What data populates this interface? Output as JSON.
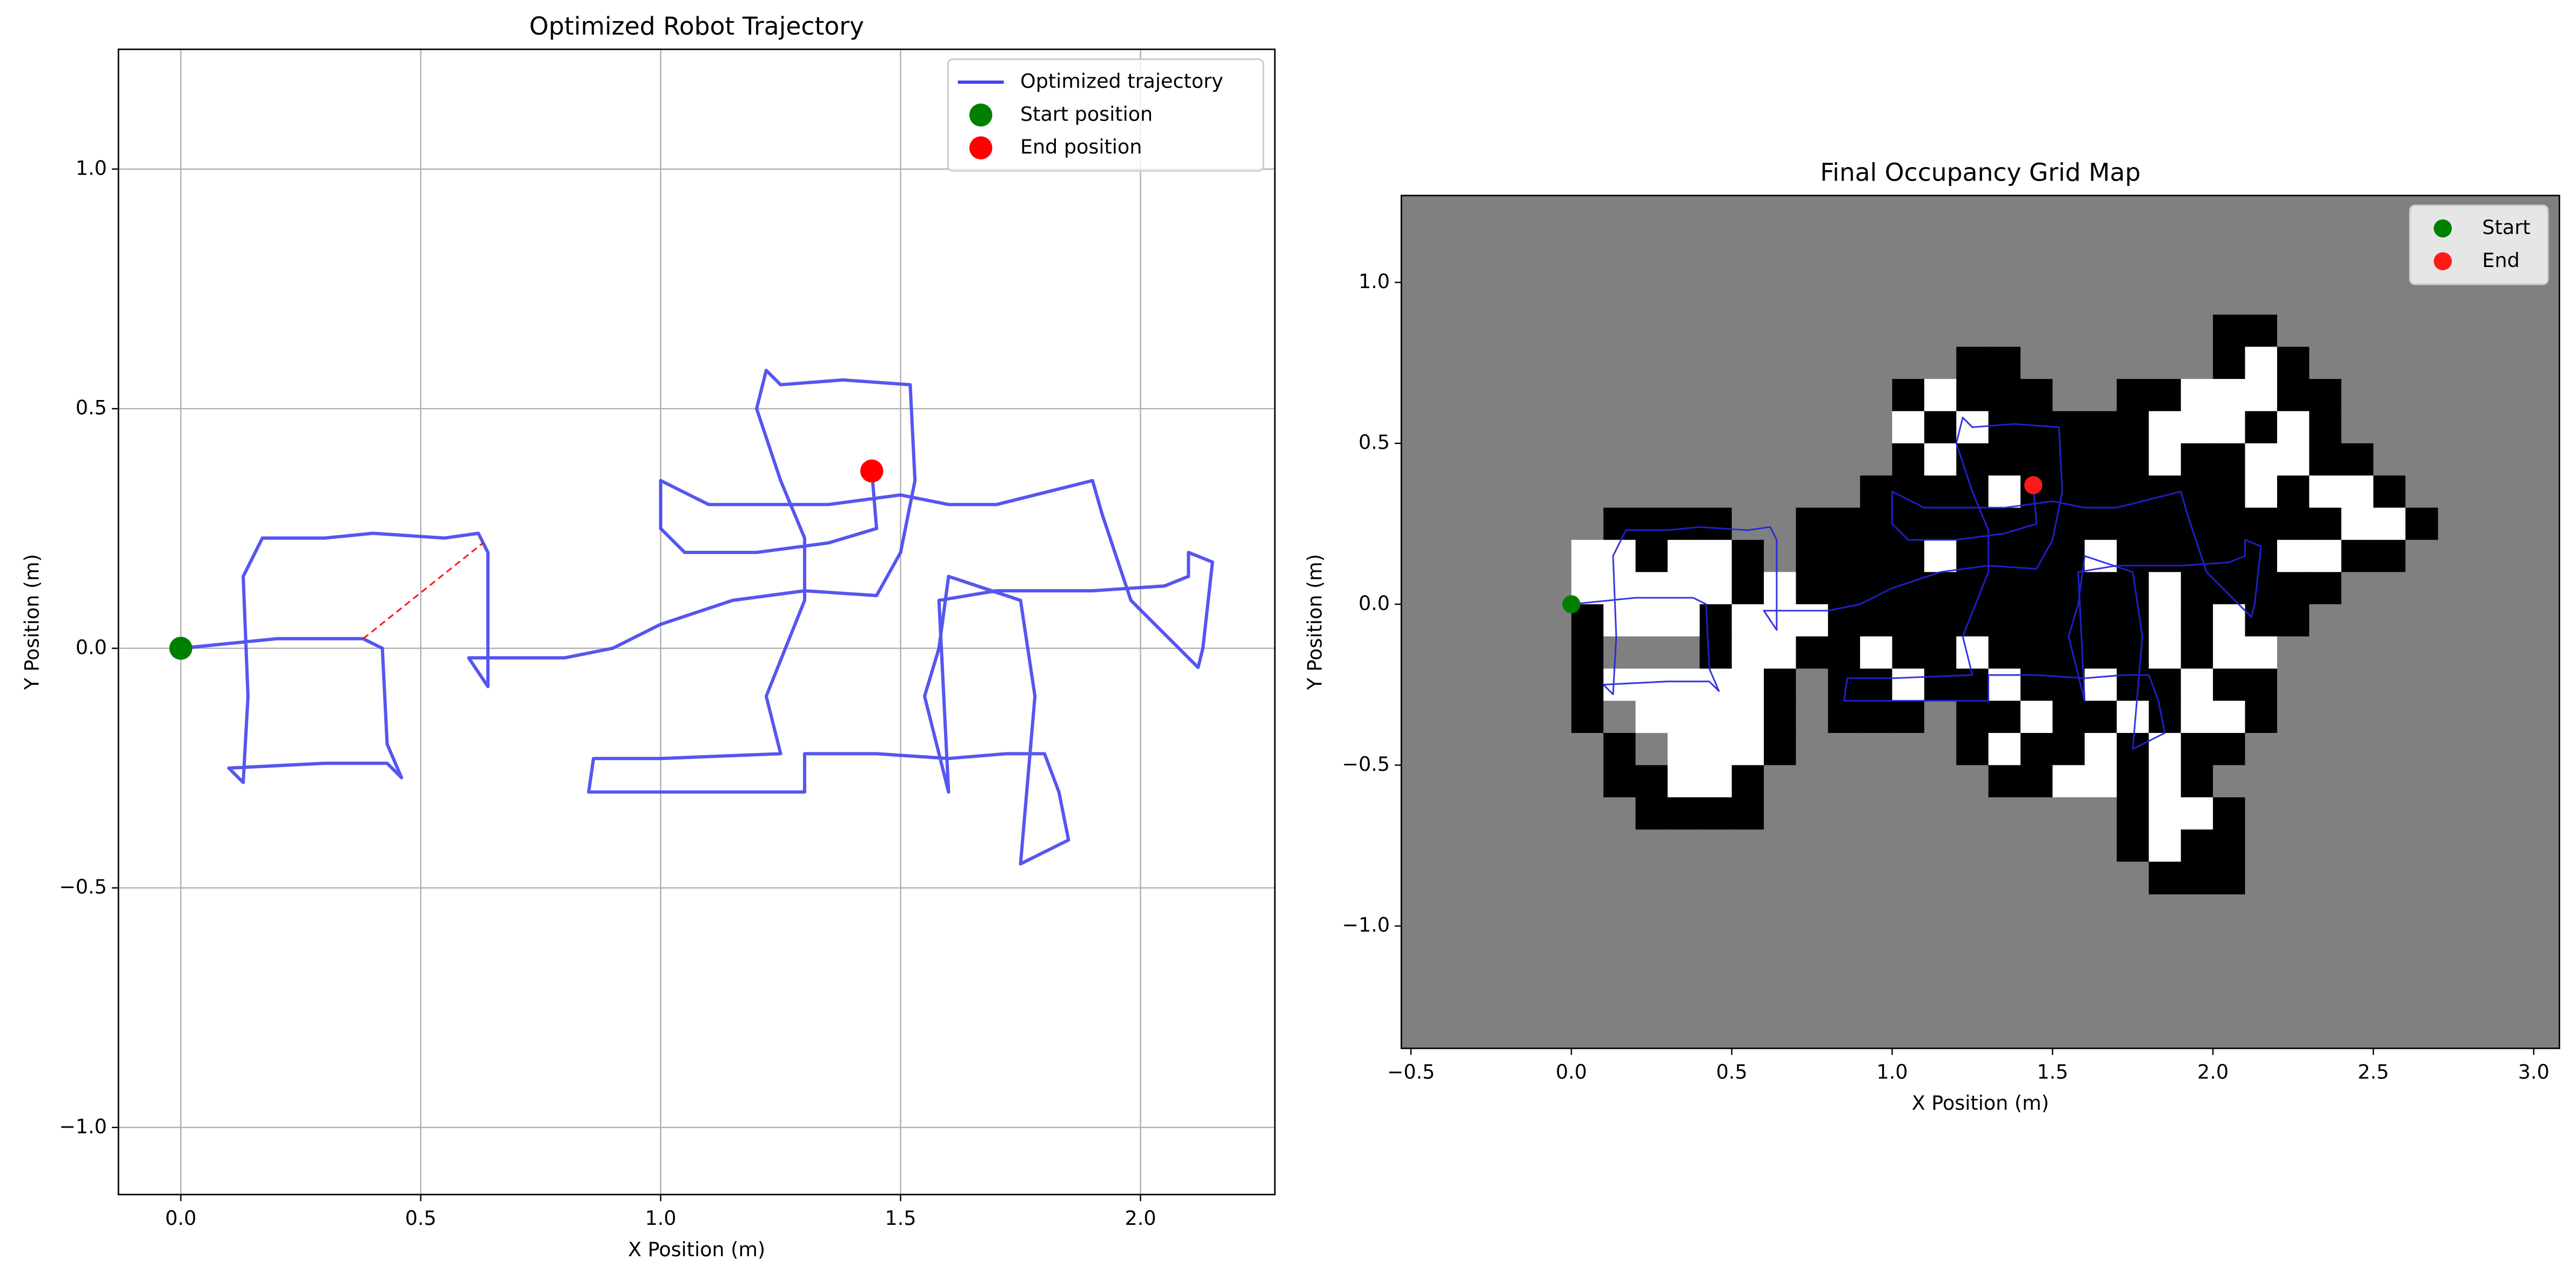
{
  "chart_data": [
    {
      "type": "line",
      "title": "Optimized Robot Trajectory",
      "xlabel": "X Position (m)",
      "ylabel": "Y Position (m)",
      "xlim": [
        -0.13,
        2.28
      ],
      "ylim": [
        -1.14,
        1.25
      ],
      "grid": true,
      "legend": "upper right",
      "xticks": [
        {
          "value": 0,
          "label": "0.0"
        },
        {
          "value": 0.5,
          "label": "0.5"
        },
        {
          "value": 1,
          "label": "1.0"
        },
        {
          "value": 1.5,
          "label": "1.5"
        },
        {
          "value": 2,
          "label": "2.0"
        }
      ],
      "yticks": [
        {
          "value": -1,
          "label": "−1.0"
        },
        {
          "value": -0.5,
          "label": "−0.5"
        },
        {
          "value": 0,
          "label": "0.0"
        },
        {
          "value": 0.5,
          "label": "0.5"
        },
        {
          "value": 1,
          "label": "1.0"
        }
      ],
      "series": [
        {
          "name": "Optimized trajectory",
          "color": "#4444ee",
          "linewidth": 2,
          "x": [
            0,
            0,
            0.2,
            0.38,
            0.42,
            0.43,
            0.46,
            0.43,
            0.3,
            0.1,
            0.13,
            0.14,
            0.13,
            0.17,
            0.3,
            0.4,
            0.55,
            0.62,
            0.64,
            0.64,
            0.64,
            0.6,
            0.8,
            0.9,
            1.0,
            1.15,
            1.3,
            1.45,
            1.5,
            1.53,
            1.52,
            1.38,
            1.25,
            1.22,
            1.2,
            1.25,
            1.3,
            1.3,
            1.22,
            1.25,
            1.0,
            0.86,
            0.85,
            0.9,
            1.1,
            1.3,
            1.3,
            1.45,
            1.6,
            1.72,
            1.8,
            1.83,
            1.85,
            1.75,
            1.78,
            1.75,
            1.6,
            1.58,
            1.55,
            1.6,
            1.58,
            1.7,
            1.9,
            2.05,
            2.1,
            2.1,
            2.15,
            2.13,
            2.12,
            1.98,
            1.92,
            1.9,
            1.7,
            1.6,
            1.5,
            1.35,
            1.1,
            1.0,
            1.0,
            1.05,
            1.2,
            1.35,
            1.45,
            1.44
          ],
          "y": [
            0.02,
            0,
            0.02,
            0.02,
            0,
            -0.2,
            -0.27,
            -0.24,
            -0.24,
            -0.25,
            -0.28,
            -0.1,
            0.15,
            0.23,
            0.23,
            0.24,
            0.23,
            0.24,
            0.2,
            0,
            -0.08,
            -0.02,
            -0.02,
            0,
            0.05,
            0.1,
            0.12,
            0.11,
            0.2,
            0.35,
            0.55,
            0.56,
            0.55,
            0.58,
            0.5,
            0.35,
            0.23,
            0.1,
            -0.1,
            -0.22,
            -0.23,
            -0.23,
            -0.3,
            -0.3,
            -0.3,
            -0.3,
            -0.22,
            -0.22,
            -0.23,
            -0.22,
            -0.22,
            -0.3,
            -0.4,
            -0.45,
            -0.1,
            0.1,
            0.15,
            0,
            -0.1,
            -0.3,
            0.1,
            0.12,
            0.12,
            0.13,
            0.15,
            0.2,
            0.18,
            0,
            -0.04,
            0.1,
            0.28,
            0.35,
            0.3,
            0.3,
            0.32,
            0.3,
            0.3,
            0.35,
            0.25,
            0.2,
            0.2,
            0.22,
            0.25,
            0.37
          ]
        },
        {
          "color": "#ff0000",
          "linewidth": 1,
          "linestyle": "dashed",
          "x": [
            0.38,
            0.63
          ],
          "y": [
            0.02,
            0.22
          ]
        },
        {
          "name": "Start position",
          "color": "#008000",
          "marker": 7,
          "x": [
            0
          ],
          "y": [
            0
          ]
        },
        {
          "name": "End position",
          "color": "#ff0000",
          "marker": 7,
          "x": [
            1.44
          ],
          "y": [
            0.37
          ]
        }
      ]
    },
    {
      "type": "heatmap",
      "title": "Final Occupancy Grid Map",
      "xlabel": "X Position (m)",
      "ylabel": "Y Position (m)",
      "xlim": [
        -0.53,
        3.08
      ],
      "ylim": [
        -1.38,
        1.27
      ],
      "grid": false,
      "legend": "upper right",
      "facecolor": "#808080",
      "cmap": "gray_r",
      "extent": [
        0,
        2.7,
        -0.9,
        0.9
      ],
      "xticks": [
        {
          "value": -0.5,
          "label": "−0.5"
        },
        {
          "value": 0,
          "label": "0.0"
        },
        {
          "value": 0.5,
          "label": "0.5"
        },
        {
          "value": 1,
          "label": "1.0"
        },
        {
          "value": 1.5,
          "label": "1.5"
        },
        {
          "value": 2,
          "label": "2.0"
        },
        {
          "value": 2.5,
          "label": "2.5"
        },
        {
          "value": 3,
          "label": "3.0"
        }
      ],
      "yticks": [
        {
          "value": -1,
          "label": "−1.0"
        },
        {
          "value": -0.5,
          "label": "−0.5"
        },
        {
          "value": 0,
          "label": "0.0"
        },
        {
          "value": 0.5,
          "label": "0.5"
        },
        {
          "value": 1,
          "label": "1.0"
        }
      ],
      "z": [
        [
          0.5,
          0.5,
          0.5,
          0.5,
          0.5,
          0.5,
          0.5,
          0.5,
          0.5,
          0.5,
          0.5,
          0.5,
          0.5,
          0.5,
          0.5,
          0.5,
          0.5,
          0.5,
          0.5,
          0.5,
          1,
          1,
          0.5,
          0.5,
          0.5,
          0.5,
          0.5
        ],
        [
          0.5,
          0.5,
          0.5,
          0.5,
          0.5,
          0.5,
          0.5,
          0.5,
          0.5,
          0.5,
          0.5,
          0.5,
          1,
          1,
          0.5,
          0.5,
          0.5,
          0.5,
          0.5,
          0.5,
          1,
          0,
          1,
          0.5,
          0.5,
          0.5,
          0.5
        ],
        [
          0.5,
          0.5,
          0.5,
          0.5,
          0.5,
          0.5,
          0.5,
          0.5,
          0.5,
          0.5,
          1,
          0,
          1,
          1,
          1,
          0.5,
          0.5,
          1,
          1,
          0,
          0,
          0,
          1,
          1,
          0.5,
          0.5,
          0.5
        ],
        [
          0.5,
          0.5,
          0.5,
          0.5,
          0.5,
          0.5,
          0.5,
          0.5,
          0.5,
          0.5,
          0,
          1,
          0,
          1,
          1,
          1,
          1,
          1,
          0,
          0,
          0,
          1,
          0,
          1,
          0.5,
          0.5,
          0.5
        ],
        [
          0.5,
          0.5,
          0.5,
          0.5,
          0.5,
          0.5,
          0.5,
          0.5,
          0.5,
          0.5,
          1,
          0,
          1,
          1,
          1,
          1,
          1,
          1,
          0,
          1,
          1,
          0,
          0,
          1,
          1,
          0.5,
          0.5
        ],
        [
          0.5,
          0.5,
          0.5,
          0.5,
          0.5,
          0.5,
          0.5,
          0.5,
          0.5,
          1,
          1,
          1,
          1,
          0,
          1,
          1,
          1,
          1,
          1,
          1,
          1,
          0,
          1,
          0,
          0,
          1,
          0.5
        ],
        [
          0.5,
          1,
          1,
          1,
          1,
          0.5,
          0.5,
          1,
          1,
          1,
          1,
          1,
          1,
          1,
          1,
          1,
          1,
          1,
          1,
          1,
          1,
          1,
          1,
          1,
          0,
          0,
          1
        ],
        [
          0,
          0,
          1,
          0,
          0,
          1,
          0.5,
          1,
          1,
          1,
          1,
          0,
          1,
          1,
          1,
          1,
          0,
          1,
          1,
          1,
          1,
          1,
          0,
          0,
          1,
          1,
          0.5
        ],
        [
          0,
          0,
          0,
          0,
          0,
          1,
          0,
          1,
          1,
          1,
          1,
          1,
          1,
          1,
          1,
          1,
          1,
          1,
          0,
          1,
          1,
          1,
          1,
          1,
          0.5,
          0.5,
          0.5
        ],
        [
          1,
          0,
          0,
          0,
          1,
          0,
          0,
          0,
          1,
          1,
          1,
          1,
          1,
          1,
          1,
          1,
          1,
          1,
          0,
          1,
          0,
          1,
          1,
          0.5,
          0.5,
          0.5,
          0.5
        ],
        [
          1,
          0.5,
          0.5,
          0.5,
          1,
          0,
          0,
          1,
          1,
          0,
          1,
          1,
          0,
          1,
          1,
          1,
          1,
          1,
          0,
          1,
          0,
          0,
          0.5,
          0.5,
          0.5,
          0.5,
          0.5
        ],
        [
          1,
          0,
          0,
          0,
          0,
          0,
          1,
          0.5,
          1,
          1,
          0,
          1,
          1,
          0,
          1,
          1,
          0,
          1,
          1,
          0,
          1,
          1,
          0.5,
          0.5,
          0.5,
          0.5,
          0.5
        ],
        [
          1,
          0.5,
          0,
          0,
          0,
          0,
          1,
          0.5,
          1,
          1,
          1,
          0.5,
          1,
          1,
          0,
          1,
          1,
          0,
          1,
          0,
          0,
          1,
          0.5,
          0.5,
          0.5,
          0.5,
          0.5
        ],
        [
          0.5,
          1,
          0.5,
          0,
          0,
          0,
          1,
          0.5,
          0.5,
          0.5,
          0.5,
          0.5,
          1,
          0,
          1,
          1,
          0,
          1,
          0,
          1,
          1,
          0.5,
          0.5,
          0.5,
          0.5,
          0.5,
          0.5
        ],
        [
          0.5,
          1,
          1,
          0,
          0,
          1,
          0.5,
          0.5,
          0.5,
          0.5,
          0.5,
          0.5,
          0.5,
          1,
          1,
          0,
          0,
          1,
          0,
          1,
          0.5,
          0.5,
          0.5,
          0.5,
          0.5,
          0.5,
          0.5
        ],
        [
          0.5,
          0.5,
          1,
          1,
          1,
          1,
          0.5,
          0.5,
          0.5,
          0.5,
          0.5,
          0.5,
          0.5,
          0.5,
          0.5,
          0.5,
          0.5,
          1,
          0,
          0,
          1,
          0.5,
          0.5,
          0.5,
          0.5,
          0.5,
          0.5
        ],
        [
          0.5,
          0.5,
          0.5,
          0.5,
          0.5,
          0.5,
          0.5,
          0.5,
          0.5,
          0.5,
          0.5,
          0.5,
          0.5,
          0.5,
          0.5,
          0.5,
          0.5,
          1,
          0,
          1,
          1,
          0.5,
          0.5,
          0.5,
          0.5,
          0.5,
          0.5
        ],
        [
          0.5,
          0.5,
          0.5,
          0.5,
          0.5,
          0.5,
          0.5,
          0.5,
          0.5,
          0.5,
          0.5,
          0.5,
          0.5,
          0.5,
          0.5,
          0.5,
          0.5,
          0.5,
          1,
          1,
          1,
          0.5,
          0.5,
          0.5,
          0.5,
          0.5,
          0.5
        ]
      ],
      "series": [
        {
          "color": "#2222dd",
          "linewidth": 1,
          "x": [
            0,
            0,
            0.2,
            0.38,
            0.42,
            0.43,
            0.46,
            0.43,
            0.3,
            0.1,
            0.13,
            0.14,
            0.13,
            0.17,
            0.3,
            0.4,
            0.55,
            0.62,
            0.64,
            0.64,
            0.64,
            0.6,
            0.8,
            0.9,
            1.0,
            1.15,
            1.3,
            1.45,
            1.5,
            1.53,
            1.52,
            1.38,
            1.25,
            1.22,
            1.2,
            1.25,
            1.3,
            1.3,
            1.22,
            1.25,
            1.0,
            0.86,
            0.85,
            0.9,
            1.1,
            1.3,
            1.3,
            1.45,
            1.6,
            1.72,
            1.8,
            1.83,
            1.85,
            1.75,
            1.78,
            1.75,
            1.6,
            1.58,
            1.55,
            1.6,
            1.58,
            1.7,
            1.9,
            2.05,
            2.1,
            2.1,
            2.15,
            2.13,
            2.12,
            1.98,
            1.92,
            1.9,
            1.7,
            1.6,
            1.5,
            1.35,
            1.1,
            1.0,
            1.0,
            1.05,
            1.2,
            1.35,
            1.45,
            1.44
          ],
          "y": [
            0.02,
            0,
            0.02,
            0.02,
            0,
            -0.2,
            -0.27,
            -0.24,
            -0.24,
            -0.25,
            -0.28,
            -0.1,
            0.15,
            0.23,
            0.23,
            0.24,
            0.23,
            0.24,
            0.2,
            0,
            -0.08,
            -0.02,
            -0.02,
            0,
            0.05,
            0.1,
            0.12,
            0.11,
            0.2,
            0.35,
            0.55,
            0.56,
            0.55,
            0.58,
            0.5,
            0.35,
            0.23,
            0.1,
            -0.1,
            -0.22,
            -0.23,
            -0.23,
            -0.3,
            -0.3,
            -0.3,
            -0.3,
            -0.22,
            -0.22,
            -0.23,
            -0.22,
            -0.22,
            -0.3,
            -0.4,
            -0.45,
            -0.1,
            0.1,
            0.15,
            0,
            -0.1,
            -0.3,
            0.1,
            0.12,
            0.12,
            0.13,
            0.15,
            0.2,
            0.18,
            0,
            -0.04,
            0.1,
            0.28,
            0.35,
            0.3,
            0.3,
            0.32,
            0.3,
            0.3,
            0.35,
            0.25,
            0.2,
            0.2,
            0.22,
            0.25,
            0.37
          ]
        },
        {
          "name": "Start",
          "color": "#008000",
          "marker": 5.5,
          "x": [
            0
          ],
          "y": [
            0
          ]
        },
        {
          "name": "End",
          "color": "#ff1a1a",
          "marker": 5.5,
          "x": [
            1.44
          ],
          "y": [
            0.37
          ]
        }
      ]
    }
  ]
}
